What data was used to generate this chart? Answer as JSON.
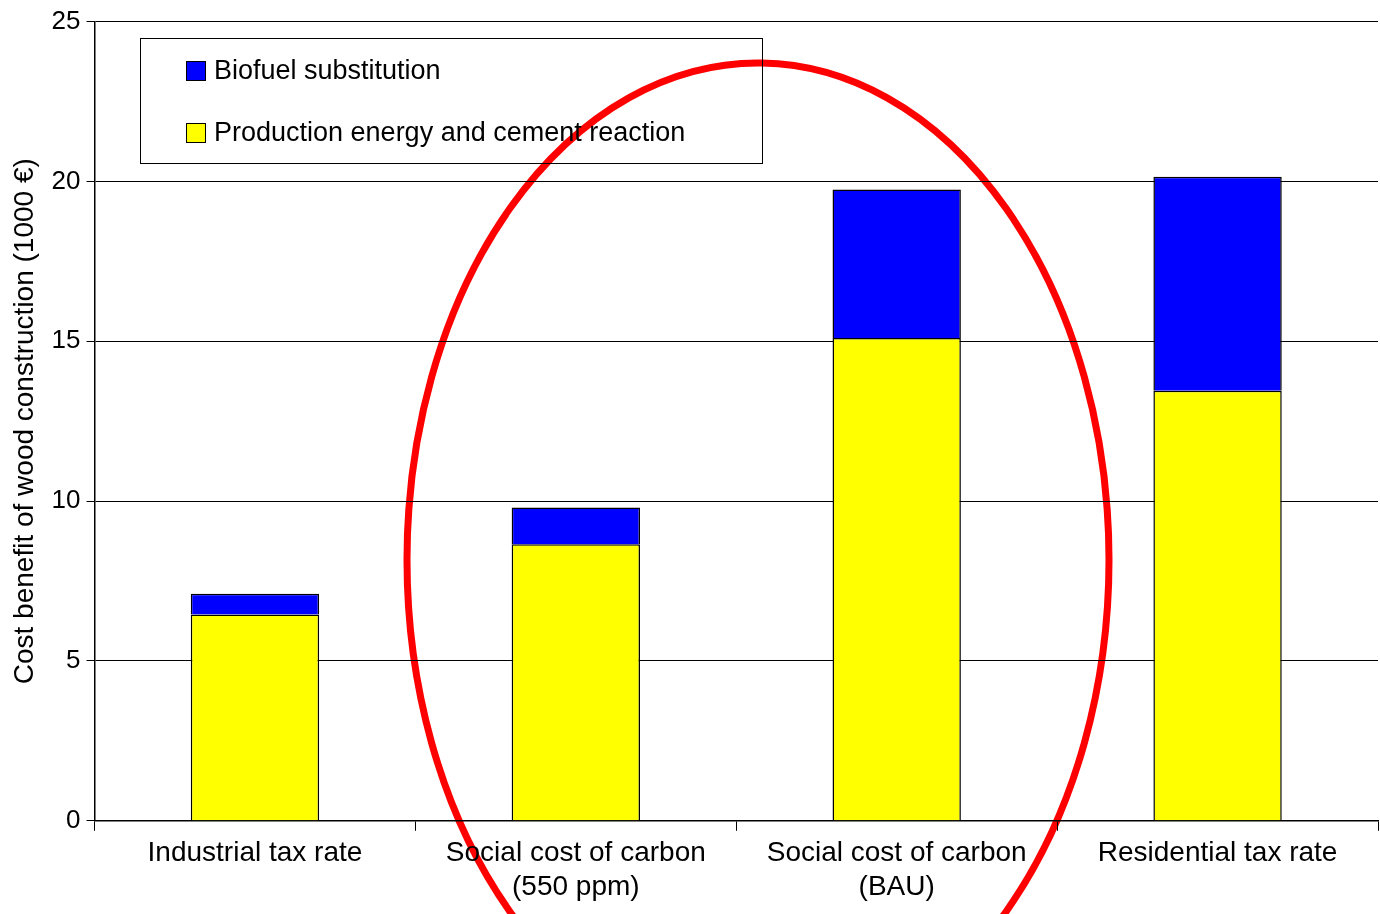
{
  "chart_data": {
    "type": "bar",
    "stacked": true,
    "ylabel": "Cost benefit of wood construction (1000 €)",
    "categories": [
      "Industrial tax rate",
      "Social cost of carbon (550 ppm)",
      "Social cost of carbon (BAU)",
      "Residential tax rate"
    ],
    "series": [
      {
        "name": "Production energy and cement reaction",
        "color": "#ffff00",
        "values": [
          6.45,
          8.65,
          15.1,
          13.45
        ]
      },
      {
        "name": "Biofuel substitution",
        "color": "#0000ff",
        "values": [
          0.65,
          1.15,
          4.65,
          6.7
        ]
      }
    ],
    "ylim": [
      0,
      25
    ],
    "yticks": [
      0,
      5,
      10,
      15,
      20,
      25
    ],
    "grid": "y",
    "legend": "top left"
  }
}
